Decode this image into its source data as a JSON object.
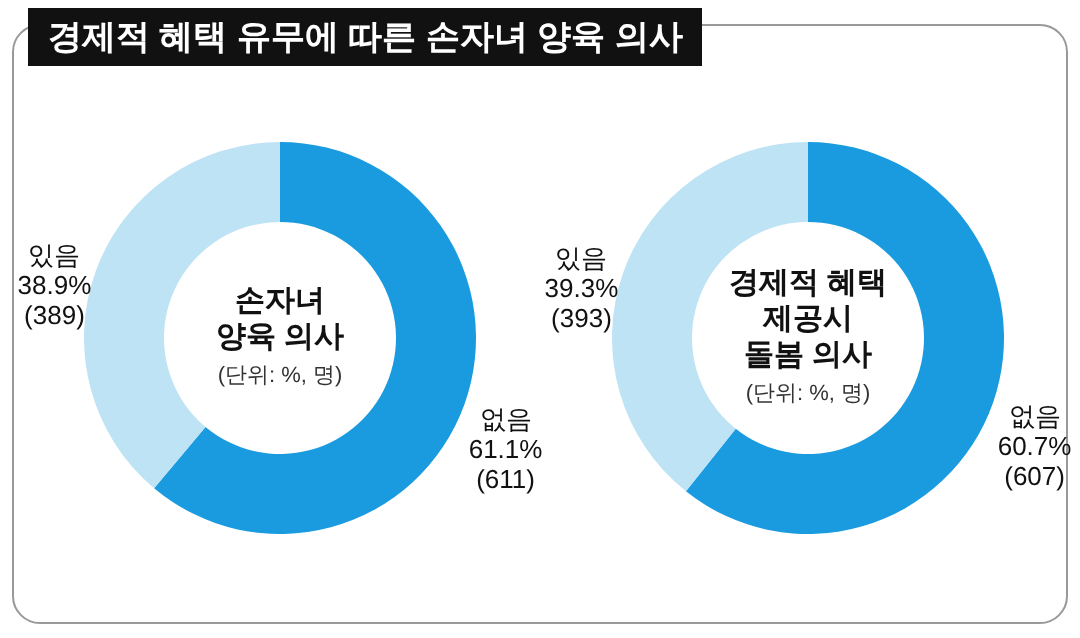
{
  "chart_data": [
    {
      "type": "donut",
      "title": "경제적 혜택 유무에 따른 손자녀 양육 의사",
      "annotations": [
        "손자녀\n양육 의사",
        "(단위: %, 명)"
      ],
      "categories": [
        "없음",
        "있음"
      ],
      "values": [
        61.1,
        38.9
      ],
      "value_labels": [
        "61.1%\n(611)",
        "38.9%\n(389)"
      ],
      "colors": [
        "#1a9be0",
        "#bde3f5"
      ]
    },
    {
      "type": "donut",
      "annotations": [
        "경제적 혜택\n제공시\n돌봄 의사",
        "(단위: %, 명)"
      ],
      "categories": [
        "없음",
        "있음"
      ],
      "values": [
        60.7,
        39.3
      ],
      "value_labels": [
        "60.7%\n(607)",
        "39.3%\n(393)"
      ],
      "colors": [
        "#1a9be0",
        "#bde3f5"
      ]
    }
  ]
}
